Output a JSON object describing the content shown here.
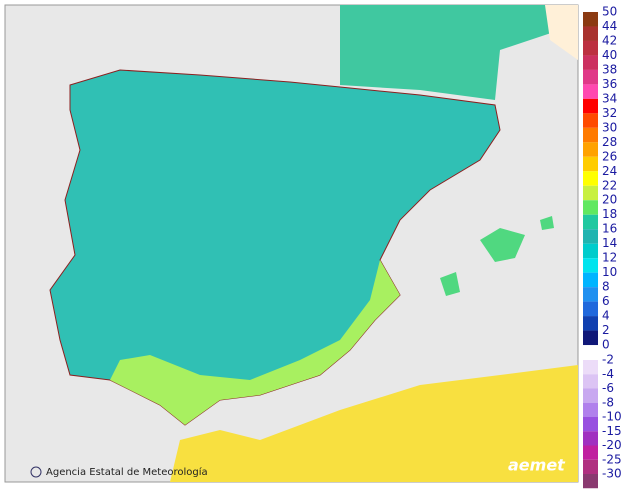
{
  "legend": {
    "labels": [
      50,
      44,
      42,
      40,
      38,
      36,
      34,
      32,
      30,
      28,
      26,
      24,
      22,
      20,
      18,
      16,
      14,
      12,
      10,
      8,
      6,
      4,
      2,
      0,
      -2,
      -4,
      -6,
      -8,
      -10,
      -15,
      -20,
      -25,
      -30
    ],
    "colors": [
      "#8b3a12",
      "#a8322e",
      "#bc3040",
      "#cc3060",
      "#e03888",
      "#ff48b0",
      "#ff0000",
      "#ff4a00",
      "#ff7a00",
      "#ffa200",
      "#ffcc00",
      "#ffff00",
      "#c8f040",
      "#60e860",
      "#20c8a0",
      "#20b4b0",
      "#00cccc",
      "#00e4ee",
      "#00b4ff",
      "#2090f0",
      "#2068dc",
      "#1040b0",
      "#101878",
      null,
      "#ecdcf8",
      "#dcc4f4",
      "#c8a8f0",
      "#b080ec",
      "#9850e0",
      "#a030c0",
      "#c020a0",
      "#b03080",
      "#8a3a70"
    ]
  },
  "credit": "Agencia Estatal de Meteorología",
  "logo": "aemet"
}
